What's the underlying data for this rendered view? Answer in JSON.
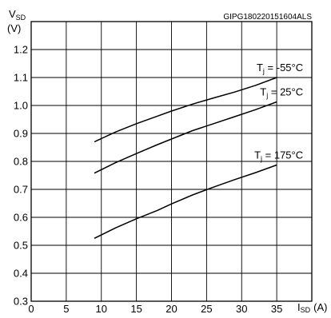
{
  "figure_code": "GIPG180220151604ALS",
  "chart_data": {
    "type": "line",
    "title": "",
    "ylabel_main": "V",
    "ylabel_sub": "SD",
    "ylabel_unit": "(V)",
    "xlabel_main": "I",
    "xlabel_sub": "SD",
    "xlabel_unit": "(A)",
    "xlim": [
      0,
      40
    ],
    "ylim": [
      0.3,
      1.3
    ],
    "x_ticks": [
      "0",
      "5",
      "10",
      "15",
      "20",
      "25",
      "30",
      "35"
    ],
    "y_ticks": [
      "0.3",
      "0.4",
      "0.5",
      "0.6",
      "0.7",
      "0.8",
      "0.9",
      "1.0",
      "1.1",
      "1.2"
    ],
    "grid": true,
    "series": [
      {
        "name": "Tj = -55°C",
        "label_main": "T",
        "label_sub": "j",
        "label_rest": " = -55°C",
        "x": [
          9,
          12,
          15,
          18,
          20,
          23,
          26,
          29,
          32,
          35
        ],
        "y": [
          0.87,
          0.905,
          0.935,
          0.962,
          0.98,
          1.005,
          1.027,
          1.048,
          1.072,
          1.1
        ]
      },
      {
        "name": "Tj = 25°C",
        "label_main": "T",
        "label_sub": "j",
        "label_rest": " = 25°C",
        "x": [
          9,
          12,
          15,
          18,
          20,
          23,
          26,
          29,
          32,
          35
        ],
        "y": [
          0.758,
          0.795,
          0.828,
          0.86,
          0.88,
          0.91,
          0.935,
          0.96,
          0.985,
          1.013
        ]
      },
      {
        "name": "Tj = 175°C",
        "label_main": "T",
        "label_sub": "j",
        "label_rest": " = 175°C",
        "x": [
          9,
          12,
          15,
          18,
          20,
          23,
          26,
          29,
          32,
          35
        ],
        "y": [
          0.525,
          0.562,
          0.595,
          0.625,
          0.648,
          0.68,
          0.708,
          0.735,
          0.76,
          0.787
        ]
      }
    ]
  }
}
